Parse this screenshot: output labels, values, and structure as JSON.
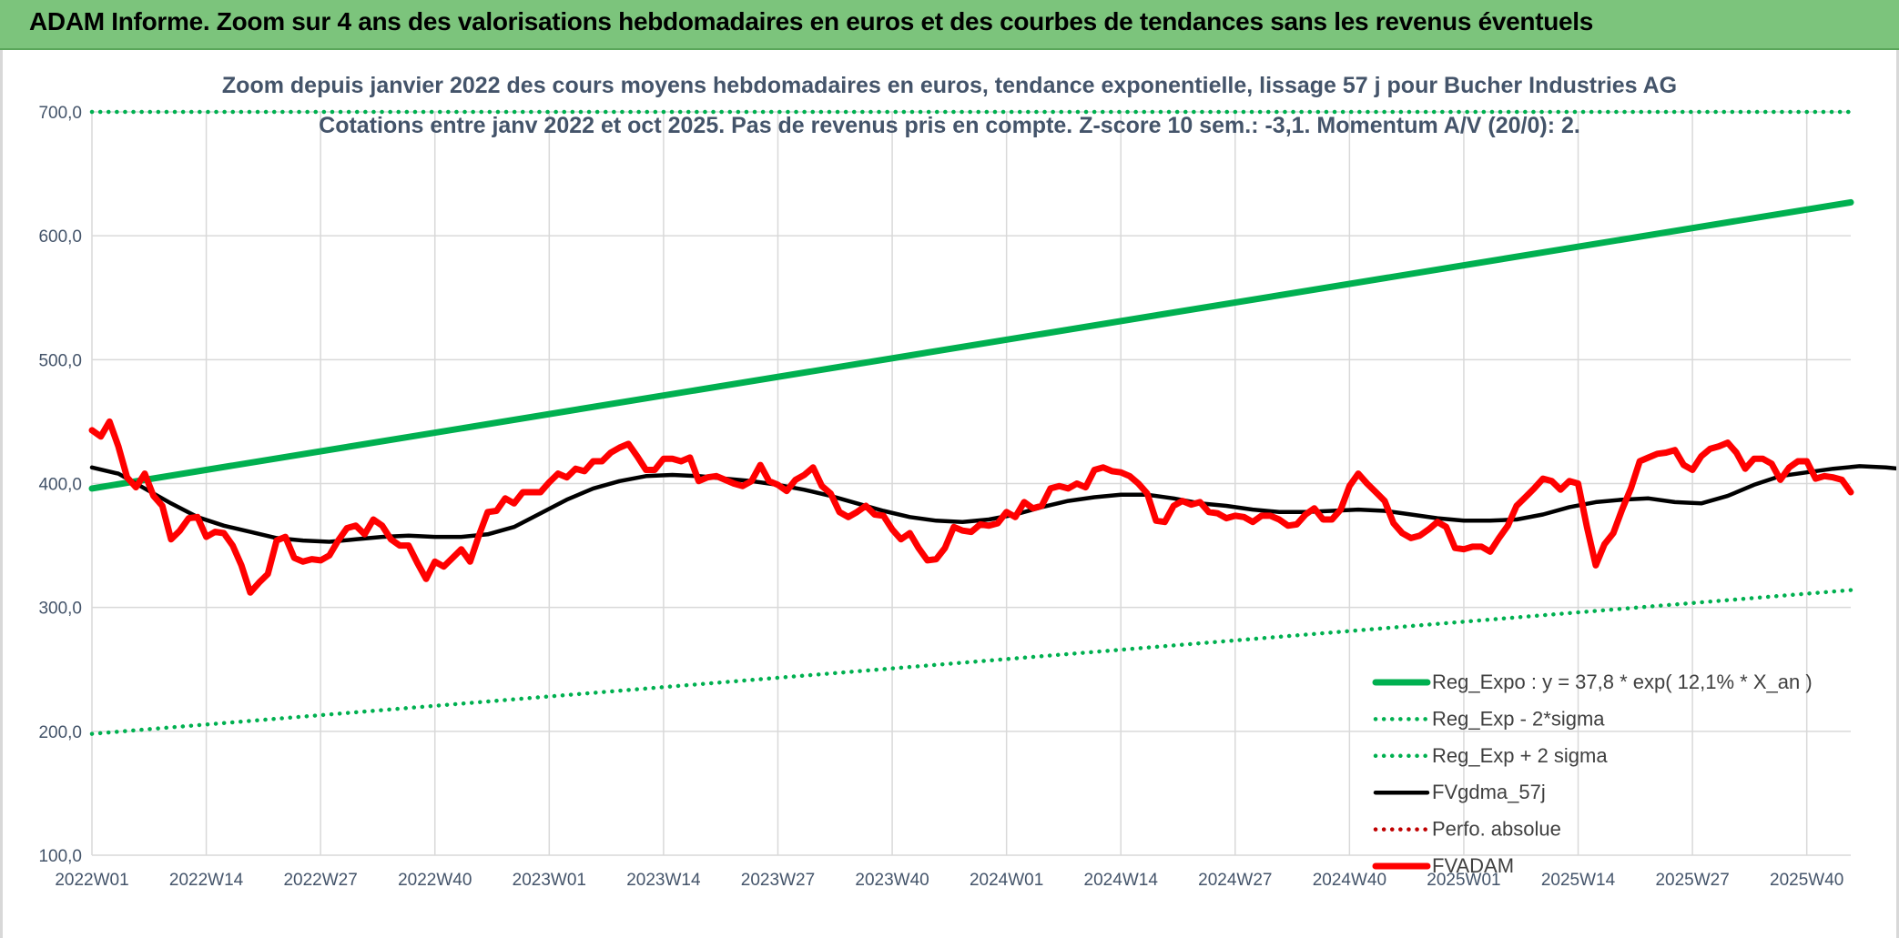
{
  "banner": {
    "title": "ADAM Informe. Zoom sur 4 ans des valorisations hebdomadaires en euros et des courbes de tendances sans les revenus éventuels"
  },
  "colors": {
    "banner_bg": "#7cc47c",
    "reg_green": "#00b050",
    "fvadam_red": "#ff0000",
    "fvgdma_black": "#000000",
    "perfo_red": "#c00000",
    "grid": "#d9d9d9",
    "text": "#44546a"
  },
  "chart_data": {
    "type": "line",
    "title": "Zoom depuis janvier 2022 des cours moyens hebdomadaires en euros, tendance exponentielle, lissage 57 j pour Bucher Industries AG",
    "subtitle": "Cotations entre janv 2022 et oct 2025. Pas de revenus pris en compte. Z-score 10 sem.: -3,1. Momentum A/V (20/0): 2.",
    "xlabel": "",
    "ylabel": "",
    "ylim": [
      100,
      700
    ],
    "y_ticks": [
      "100,0",
      "200,0",
      "300,0",
      "400,0",
      "500,0",
      "600,0",
      "700,0"
    ],
    "x_tick_labels": [
      "2022W01",
      "2022W14",
      "2022W27",
      "2022W40",
      "2023W01",
      "2023W14",
      "2023W27",
      "2023W40",
      "2024W01",
      "2024W14",
      "2024W27",
      "2024W40",
      "2025W01",
      "2025W14",
      "2025W27",
      "2025W40"
    ],
    "x_tick_index": [
      0,
      13,
      26,
      39,
      52,
      65,
      78,
      91,
      104,
      117,
      130,
      143,
      156,
      169,
      182,
      195
    ],
    "n_weeks": 201,
    "grid": true,
    "legend_position": "bottom-right",
    "series": [
      {
        "name": "Reg_Expo : y = 37,8 * exp( 12,1% *  X_an )",
        "style": "solid-thick",
        "color": "#00b050",
        "points": [
          [
            0,
            396
          ],
          [
            200,
            627
          ]
        ]
      },
      {
        "name": "Reg_Exp - 2*sigma",
        "style": "dotted",
        "color": "#00b050",
        "points": [
          [
            0,
            198
          ],
          [
            200,
            314
          ]
        ]
      },
      {
        "name": "Reg_Exp + 2 sigma",
        "style": "dotted",
        "color": "#00b050",
        "points": [
          [
            0,
            700
          ],
          [
            200,
            700
          ]
        ]
      },
      {
        "name": "FVgdma_57j",
        "style": "solid",
        "color": "#000000",
        "points": [
          [
            0,
            413
          ],
          [
            3,
            408
          ],
          [
            6,
            396
          ],
          [
            9,
            384
          ],
          [
            12,
            373
          ],
          [
            15,
            366
          ],
          [
            18,
            361
          ],
          [
            21,
            356
          ],
          [
            24,
            354
          ],
          [
            27,
            353
          ],
          [
            30,
            355
          ],
          [
            33,
            357
          ],
          [
            36,
            358
          ],
          [
            39,
            357
          ],
          [
            42,
            357
          ],
          [
            45,
            359
          ],
          [
            48,
            365
          ],
          [
            51,
            376
          ],
          [
            54,
            387
          ],
          [
            57,
            396
          ],
          [
            60,
            402
          ],
          [
            63,
            406
          ],
          [
            66,
            407
          ],
          [
            69,
            406
          ],
          [
            72,
            404
          ],
          [
            75,
            402
          ],
          [
            78,
            399
          ],
          [
            81,
            395
          ],
          [
            84,
            390
          ],
          [
            87,
            384
          ],
          [
            90,
            378
          ],
          [
            93,
            373
          ],
          [
            96,
            370
          ],
          [
            99,
            369
          ],
          [
            102,
            371
          ],
          [
            105,
            375
          ],
          [
            108,
            381
          ],
          [
            111,
            386
          ],
          [
            114,
            389
          ],
          [
            117,
            391
          ],
          [
            120,
            391
          ],
          [
            123,
            388
          ],
          [
            126,
            384
          ],
          [
            129,
            382
          ],
          [
            132,
            379
          ],
          [
            135,
            377
          ],
          [
            138,
            377
          ],
          [
            141,
            378
          ],
          [
            144,
            379
          ],
          [
            147,
            378
          ],
          [
            150,
            375
          ],
          [
            153,
            372
          ],
          [
            156,
            370
          ],
          [
            159,
            370
          ],
          [
            162,
            371
          ],
          [
            165,
            375
          ],
          [
            168,
            381
          ],
          [
            171,
            385
          ],
          [
            174,
            387
          ],
          [
            177,
            388
          ],
          [
            180,
            385
          ],
          [
            183,
            384
          ],
          [
            186,
            390
          ],
          [
            189,
            399
          ],
          [
            192,
            406
          ],
          [
            195,
            409
          ],
          [
            198,
            412
          ],
          [
            201,
            414
          ],
          [
            204,
            413
          ],
          [
            207,
            411
          ],
          [
            210,
            409
          ],
          [
            213,
            406
          ],
          [
            216,
            402
          ]
        ]
      },
      {
        "name": "Perfo. absolue",
        "style": "dotted",
        "color": "#c00000",
        "points": []
      },
      {
        "name": "FVADAM",
        "style": "solid-thick",
        "color": "#ff0000",
        "points": [
          [
            0,
            443
          ],
          [
            1,
            438
          ],
          [
            2,
            450
          ],
          [
            3,
            430
          ],
          [
            4,
            405
          ],
          [
            5,
            397
          ],
          [
            6,
            408
          ],
          [
            7,
            390
          ],
          [
            8,
            382
          ],
          [
            9,
            355
          ],
          [
            10,
            362
          ],
          [
            11,
            372
          ],
          [
            12,
            373
          ],
          [
            13,
            357
          ],
          [
            14,
            361
          ],
          [
            15,
            360
          ],
          [
            16,
            350
          ],
          [
            17,
            334
          ],
          [
            18,
            312
          ],
          [
            19,
            320
          ],
          [
            20,
            327
          ],
          [
            21,
            354
          ],
          [
            22,
            357
          ],
          [
            23,
            340
          ],
          [
            24,
            337
          ],
          [
            25,
            339
          ],
          [
            26,
            338
          ],
          [
            27,
            342
          ],
          [
            28,
            354
          ],
          [
            29,
            364
          ],
          [
            30,
            366
          ],
          [
            31,
            359
          ],
          [
            32,
            371
          ],
          [
            33,
            366
          ],
          [
            34,
            355
          ],
          [
            35,
            350
          ],
          [
            36,
            350
          ],
          [
            37,
            336
          ],
          [
            38,
            323
          ],
          [
            39,
            337
          ],
          [
            40,
            333
          ],
          [
            41,
            340
          ],
          [
            42,
            347
          ],
          [
            43,
            337
          ],
          [
            44,
            358
          ],
          [
            45,
            377
          ],
          [
            46,
            378
          ],
          [
            47,
            388
          ],
          [
            48,
            384
          ],
          [
            49,
            393
          ],
          [
            50,
            393
          ],
          [
            51,
            393
          ],
          [
            52,
            401
          ],
          [
            53,
            408
          ],
          [
            54,
            405
          ],
          [
            55,
            412
          ],
          [
            56,
            410
          ],
          [
            57,
            418
          ],
          [
            58,
            418
          ],
          [
            59,
            425
          ],
          [
            60,
            429
          ],
          [
            61,
            432
          ],
          [
            62,
            422
          ],
          [
            63,
            411
          ],
          [
            64,
            411
          ],
          [
            65,
            420
          ],
          [
            66,
            420
          ],
          [
            67,
            418
          ],
          [
            68,
            421
          ],
          [
            69,
            402
          ],
          [
            70,
            405
          ],
          [
            71,
            406
          ],
          [
            72,
            403
          ],
          [
            73,
            400
          ],
          [
            74,
            398
          ],
          [
            75,
            402
          ],
          [
            76,
            415
          ],
          [
            77,
            402
          ],
          [
            78,
            399
          ],
          [
            79,
            394
          ],
          [
            80,
            403
          ],
          [
            81,
            407
          ],
          [
            82,
            413
          ],
          [
            83,
            398
          ],
          [
            84,
            392
          ],
          [
            85,
            377
          ],
          [
            86,
            373
          ],
          [
            87,
            377
          ],
          [
            88,
            382
          ],
          [
            89,
            375
          ],
          [
            90,
            374
          ],
          [
            91,
            363
          ],
          [
            92,
            355
          ],
          [
            93,
            360
          ],
          [
            94,
            348
          ],
          [
            95,
            338
          ],
          [
            96,
            339
          ],
          [
            97,
            348
          ],
          [
            98,
            365
          ],
          [
            99,
            362
          ],
          [
            100,
            361
          ],
          [
            101,
            367
          ],
          [
            102,
            366
          ],
          [
            103,
            368
          ],
          [
            104,
            377
          ],
          [
            105,
            373
          ],
          [
            106,
            385
          ],
          [
            107,
            380
          ],
          [
            108,
            382
          ],
          [
            109,
            396
          ],
          [
            110,
            398
          ],
          [
            111,
            396
          ],
          [
            112,
            400
          ],
          [
            113,
            397
          ],
          [
            114,
            411
          ],
          [
            115,
            413
          ],
          [
            116,
            410
          ],
          [
            117,
            409
          ],
          [
            118,
            406
          ],
          [
            119,
            400
          ],
          [
            120,
            392
          ],
          [
            121,
            370
          ],
          [
            122,
            369
          ],
          [
            123,
            382
          ],
          [
            124,
            386
          ],
          [
            125,
            383
          ],
          [
            126,
            385
          ],
          [
            127,
            377
          ],
          [
            128,
            376
          ],
          [
            129,
            372
          ],
          [
            130,
            374
          ],
          [
            131,
            373
          ],
          [
            132,
            369
          ],
          [
            133,
            374
          ],
          [
            134,
            374
          ],
          [
            135,
            371
          ],
          [
            136,
            366
          ],
          [
            137,
            367
          ],
          [
            138,
            375
          ],
          [
            139,
            380
          ],
          [
            140,
            371
          ],
          [
            141,
            371
          ],
          [
            142,
            379
          ],
          [
            143,
            398
          ],
          [
            144,
            408
          ],
          [
            145,
            400
          ],
          [
            146,
            393
          ],
          [
            147,
            386
          ],
          [
            148,
            368
          ],
          [
            149,
            360
          ],
          [
            150,
            356
          ],
          [
            151,
            358
          ],
          [
            152,
            363
          ],
          [
            153,
            369
          ],
          [
            154,
            365
          ],
          [
            155,
            348
          ],
          [
            156,
            347
          ],
          [
            157,
            349
          ],
          [
            158,
            349
          ],
          [
            159,
            345
          ],
          [
            160,
            356
          ],
          [
            161,
            366
          ],
          [
            162,
            382
          ],
          [
            163,
            389
          ],
          [
            164,
            396
          ],
          [
            165,
            404
          ],
          [
            166,
            402
          ],
          [
            167,
            395
          ],
          [
            168,
            402
          ],
          [
            169,
            400
          ],
          [
            170,
            365
          ],
          [
            171,
            334
          ],
          [
            172,
            351
          ],
          [
            173,
            360
          ],
          [
            174,
            379
          ],
          [
            175,
            396
          ],
          [
            176,
            418
          ],
          [
            177,
            421
          ],
          [
            178,
            424
          ],
          [
            179,
            425
          ],
          [
            180,
            427
          ],
          [
            181,
            415
          ],
          [
            182,
            411
          ],
          [
            183,
            422
          ],
          [
            184,
            428
          ],
          [
            185,
            430
          ],
          [
            186,
            433
          ],
          [
            187,
            425
          ],
          [
            188,
            412
          ],
          [
            189,
            420
          ],
          [
            190,
            420
          ],
          [
            191,
            416
          ],
          [
            192,
            403
          ],
          [
            193,
            413
          ],
          [
            194,
            418
          ],
          [
            195,
            418
          ],
          [
            196,
            404
          ],
          [
            197,
            406
          ],
          [
            198,
            405
          ],
          [
            199,
            403
          ],
          [
            200,
            393
          ]
        ]
      }
    ]
  }
}
